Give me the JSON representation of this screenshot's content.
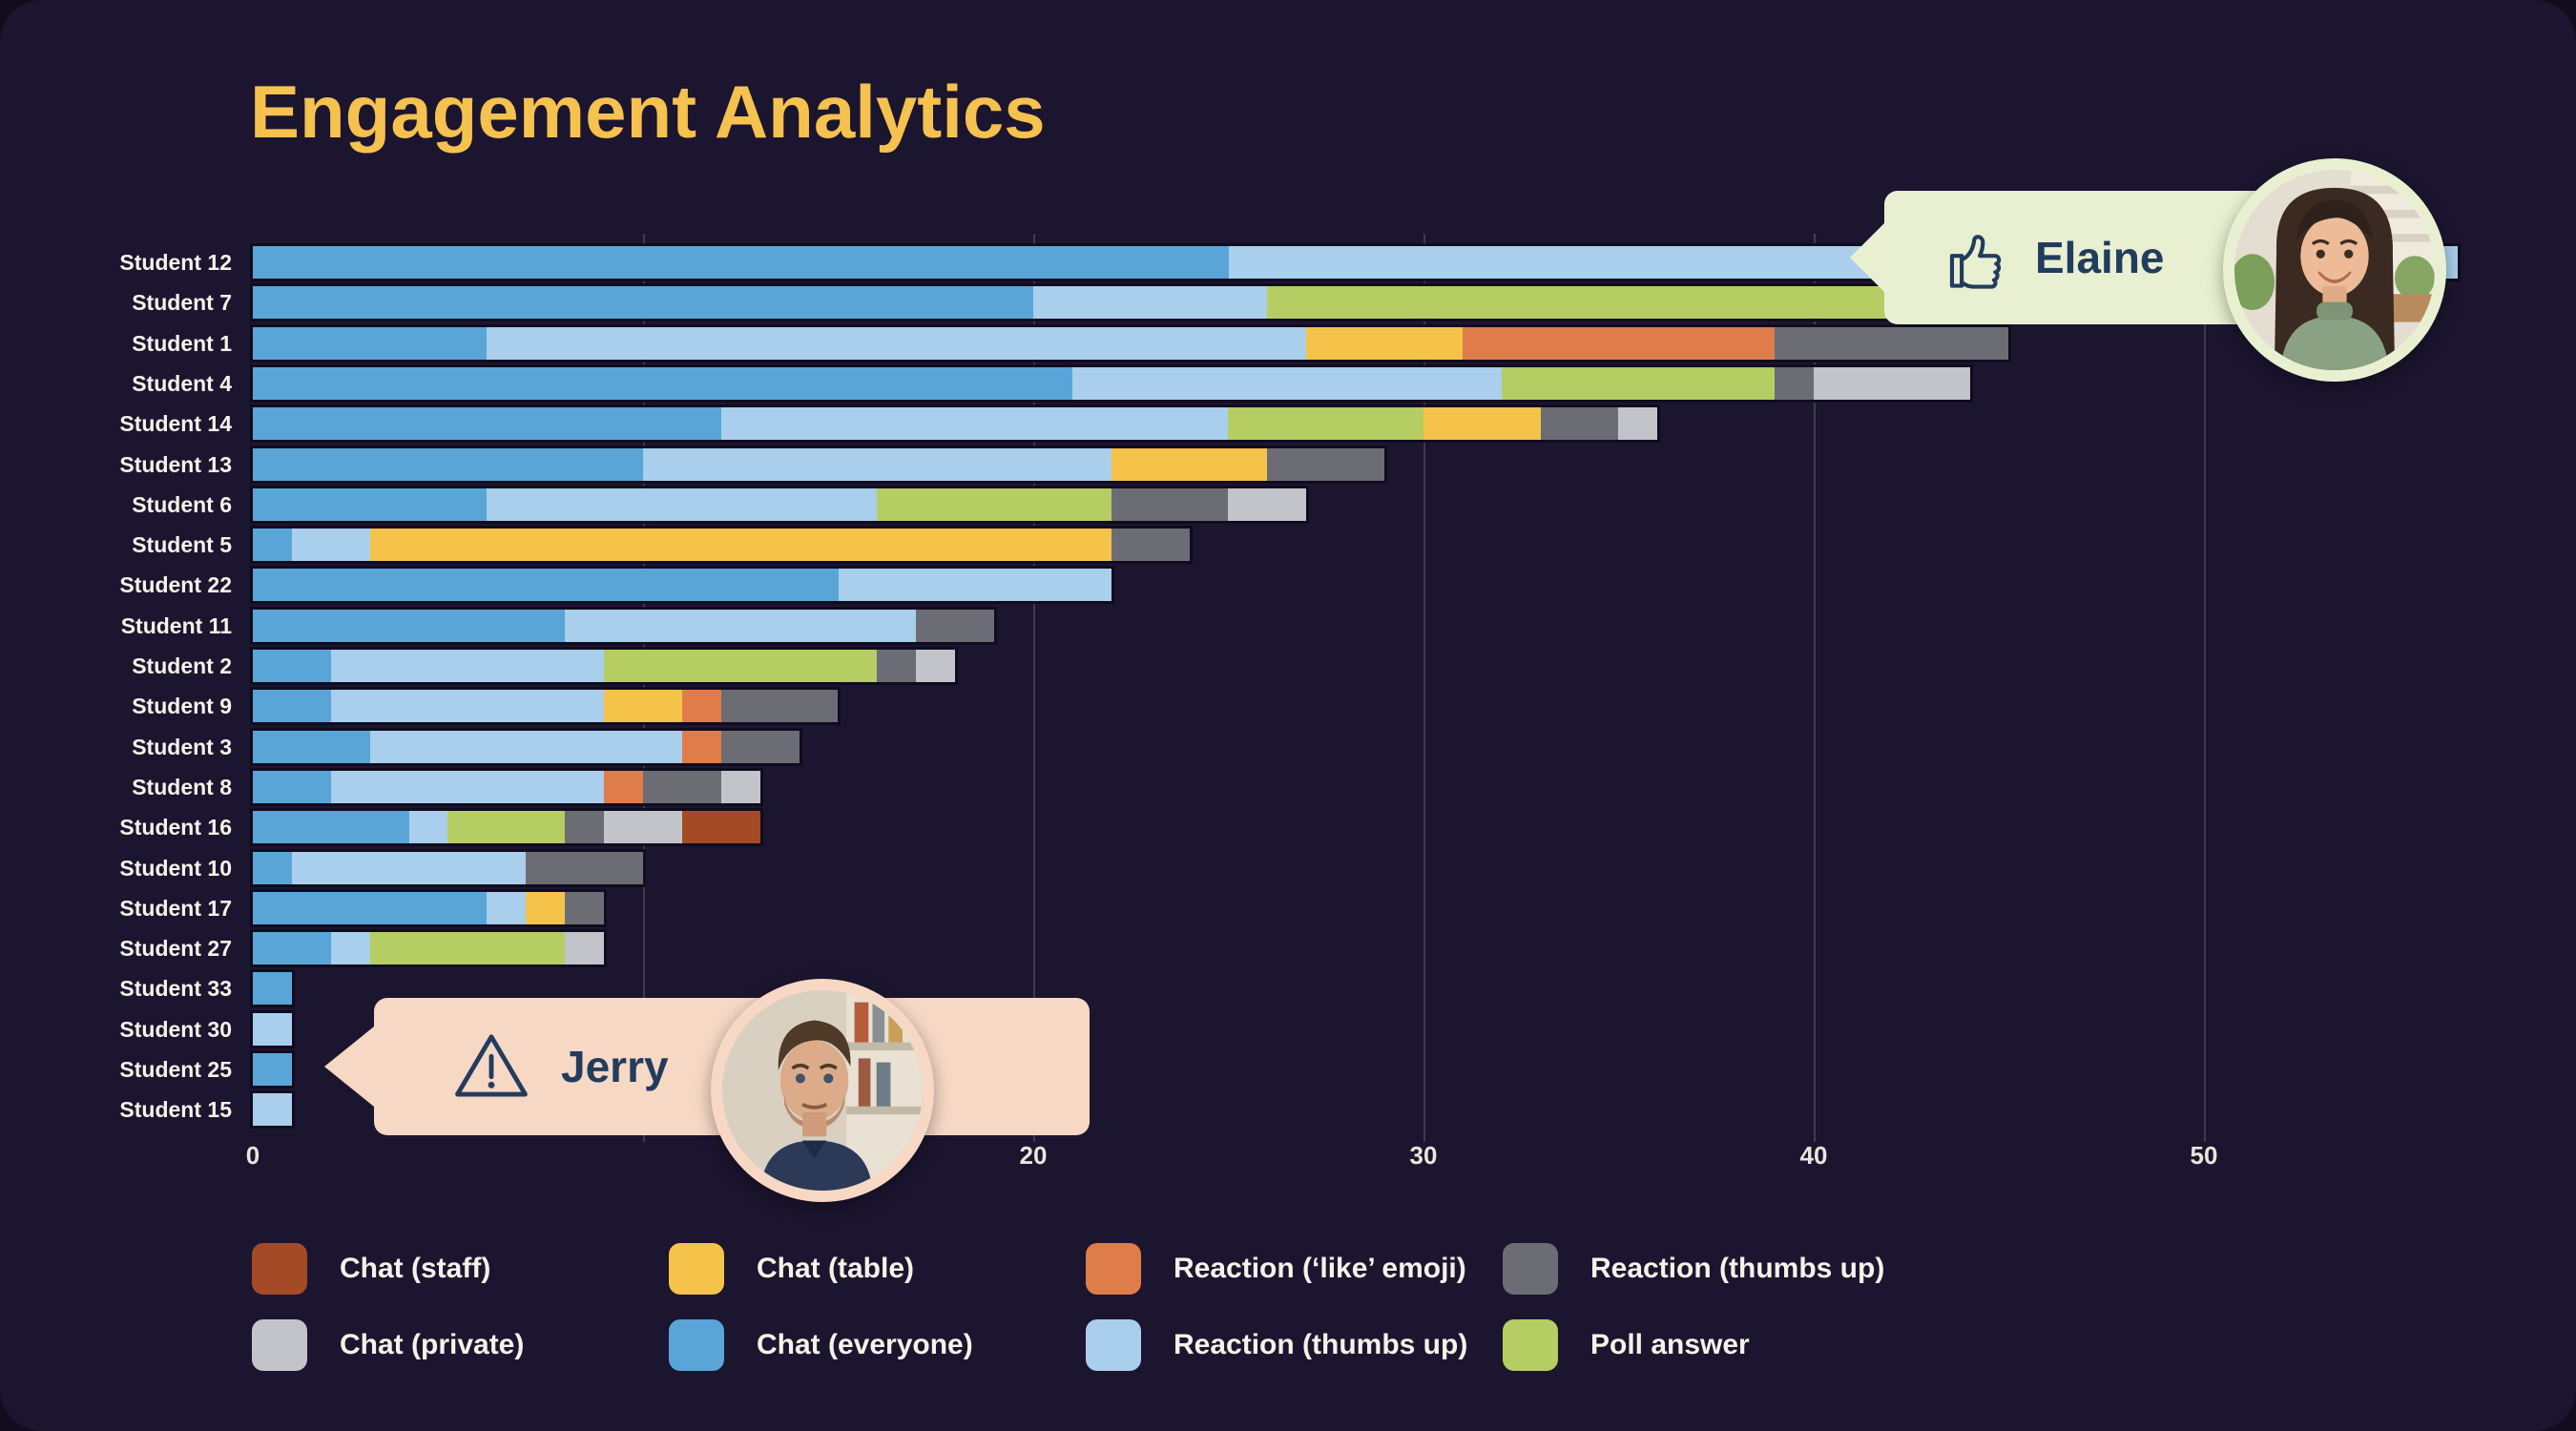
{
  "title": "Engagement Analytics",
  "colors": {
    "background": "#120c1e",
    "card": "#1c152f",
    "title": "#f5c14f",
    "text": "#f6f2e9",
    "grid": "rgba(255,255,255,0.16)",
    "callout_elaine_bg": "#e9f0d2",
    "callout_jerry_bg": "#f6d8c5",
    "callout_text": "#223c5e",
    "series": {
      "chat_staff": "#a54a26",
      "chat_table": "#f5c24a",
      "reaction_like": "#df7d4a",
      "reaction_thumbs_dark": "#6c6c74",
      "chat_private": "#c3c3ca",
      "chat_everyone": "#5aa5d8",
      "reaction_thumbs_light": "#a9cfec",
      "poll_answer": "#b5cd62"
    }
  },
  "chart_data": {
    "type": "bar",
    "orientation": "horizontal",
    "stacked": true,
    "title": "Engagement Analytics",
    "xlabel": "",
    "ylabel": "",
    "xlim": [
      0,
      57
    ],
    "x_axis": {
      "tick_labels": [
        0,
        20,
        30,
        40,
        50
      ],
      "gridlines": [
        10,
        20,
        30,
        40,
        50
      ]
    },
    "grid": true,
    "legend_position": "bottom",
    "legend": [
      {
        "key": "chat_staff",
        "label": "Chat (staff)"
      },
      {
        "key": "chat_table",
        "label": "Chat (table)"
      },
      {
        "key": "reaction_like",
        "label": "Reaction (‘like’ emoji)"
      },
      {
        "key": "reaction_thumbs_dark",
        "label": "Reaction (thumbs up)"
      },
      {
        "key": "chat_private",
        "label": "Chat (private)"
      },
      {
        "key": "chat_everyone",
        "label": "Chat (everyone)"
      },
      {
        "key": "reaction_thumbs_light",
        "label": "Reaction (thumbs up)"
      },
      {
        "key": "poll_answer",
        "label": "Poll answer"
      }
    ],
    "categories": [
      "Student 12",
      "Student 7",
      "Student 1",
      "Student 4",
      "Student 14",
      "Student 13",
      "Student 6",
      "Student 5",
      "Student 22",
      "Student 11",
      "Student 2",
      "Student 9",
      "Student 3",
      "Student 8",
      "Student 16",
      "Student 10",
      "Student 17",
      "Student 27",
      "Student 33",
      "Student 30",
      "Student 25",
      "Student 15"
    ],
    "rows": [
      {
        "label": "Student 12",
        "segments": [
          {
            "key": "chat_everyone",
            "value": 25
          },
          {
            "key": "reaction_thumbs_light",
            "value": 31.5
          }
        ]
      },
      {
        "label": "Student 7",
        "segments": [
          {
            "key": "chat_everyone",
            "value": 20
          },
          {
            "key": "reaction_thumbs_light",
            "value": 6
          },
          {
            "key": "poll_answer",
            "value": 18
          }
        ]
      },
      {
        "label": "Student 1",
        "segments": [
          {
            "key": "chat_everyone",
            "value": 6
          },
          {
            "key": "reaction_thumbs_light",
            "value": 21
          },
          {
            "key": "chat_table",
            "value": 4
          },
          {
            "key": "reaction_like",
            "value": 8
          },
          {
            "key": "reaction_thumbs_dark",
            "value": 6
          }
        ]
      },
      {
        "label": "Student 4",
        "segments": [
          {
            "key": "chat_everyone",
            "value": 21
          },
          {
            "key": "reaction_thumbs_light",
            "value": 11
          },
          {
            "key": "poll_answer",
            "value": 7
          },
          {
            "key": "reaction_thumbs_dark",
            "value": 1
          },
          {
            "key": "chat_private",
            "value": 4
          }
        ]
      },
      {
        "label": "Student 14",
        "segments": [
          {
            "key": "chat_everyone",
            "value": 12
          },
          {
            "key": "reaction_thumbs_light",
            "value": 13
          },
          {
            "key": "poll_answer",
            "value": 5
          },
          {
            "key": "chat_table",
            "value": 3
          },
          {
            "key": "reaction_thumbs_dark",
            "value": 2
          },
          {
            "key": "chat_private",
            "value": 1
          }
        ]
      },
      {
        "label": "Student 13",
        "segments": [
          {
            "key": "chat_everyone",
            "value": 10
          },
          {
            "key": "reaction_thumbs_light",
            "value": 12
          },
          {
            "key": "chat_table",
            "value": 4
          },
          {
            "key": "reaction_thumbs_dark",
            "value": 3
          }
        ]
      },
      {
        "label": "Student 6",
        "segments": [
          {
            "key": "chat_everyone",
            "value": 6
          },
          {
            "key": "reaction_thumbs_light",
            "value": 10
          },
          {
            "key": "poll_answer",
            "value": 6
          },
          {
            "key": "reaction_thumbs_dark",
            "value": 3
          },
          {
            "key": "chat_private",
            "value": 2
          }
        ]
      },
      {
        "label": "Student 5",
        "segments": [
          {
            "key": "chat_everyone",
            "value": 1
          },
          {
            "key": "reaction_thumbs_light",
            "value": 2
          },
          {
            "key": "chat_table",
            "value": 19
          },
          {
            "key": "reaction_thumbs_dark",
            "value": 2
          }
        ]
      },
      {
        "label": "Student 22",
        "segments": [
          {
            "key": "chat_everyone",
            "value": 15
          },
          {
            "key": "reaction_thumbs_light",
            "value": 7
          }
        ]
      },
      {
        "label": "Student 11",
        "segments": [
          {
            "key": "chat_everyone",
            "value": 8
          },
          {
            "key": "reaction_thumbs_light",
            "value": 9
          },
          {
            "key": "reaction_thumbs_dark",
            "value": 2
          }
        ]
      },
      {
        "label": "Student 2",
        "segments": [
          {
            "key": "chat_everyone",
            "value": 2
          },
          {
            "key": "reaction_thumbs_light",
            "value": 7
          },
          {
            "key": "poll_answer",
            "value": 7
          },
          {
            "key": "reaction_thumbs_dark",
            "value": 1
          },
          {
            "key": "chat_private",
            "value": 1
          }
        ]
      },
      {
        "label": "Student 9",
        "segments": [
          {
            "key": "chat_everyone",
            "value": 2
          },
          {
            "key": "reaction_thumbs_light",
            "value": 7
          },
          {
            "key": "chat_table",
            "value": 2
          },
          {
            "key": "reaction_like",
            "value": 1
          },
          {
            "key": "reaction_thumbs_dark",
            "value": 3
          }
        ]
      },
      {
        "label": "Student 3",
        "segments": [
          {
            "key": "chat_everyone",
            "value": 3
          },
          {
            "key": "reaction_thumbs_light",
            "value": 8
          },
          {
            "key": "reaction_like",
            "value": 1
          },
          {
            "key": "reaction_thumbs_dark",
            "value": 2
          }
        ]
      },
      {
        "label": "Student 8",
        "segments": [
          {
            "key": "chat_everyone",
            "value": 2
          },
          {
            "key": "reaction_thumbs_light",
            "value": 7
          },
          {
            "key": "reaction_like",
            "value": 1
          },
          {
            "key": "reaction_thumbs_dark",
            "value": 2
          },
          {
            "key": "chat_private",
            "value": 1
          }
        ]
      },
      {
        "label": "Student 16",
        "segments": [
          {
            "key": "chat_everyone",
            "value": 4
          },
          {
            "key": "reaction_thumbs_light",
            "value": 1
          },
          {
            "key": "poll_answer",
            "value": 3
          },
          {
            "key": "reaction_thumbs_dark",
            "value": 1
          },
          {
            "key": "chat_private",
            "value": 2
          },
          {
            "key": "chat_staff",
            "value": 2
          }
        ]
      },
      {
        "label": "Student 10",
        "segments": [
          {
            "key": "chat_everyone",
            "value": 1
          },
          {
            "key": "reaction_thumbs_light",
            "value": 6
          },
          {
            "key": "reaction_thumbs_dark",
            "value": 3
          }
        ]
      },
      {
        "label": "Student 17",
        "segments": [
          {
            "key": "chat_everyone",
            "value": 6
          },
          {
            "key": "reaction_thumbs_light",
            "value": 1
          },
          {
            "key": "chat_table",
            "value": 1
          },
          {
            "key": "reaction_thumbs_dark",
            "value": 1
          }
        ]
      },
      {
        "label": "Student 27",
        "segments": [
          {
            "key": "chat_everyone",
            "value": 2
          },
          {
            "key": "reaction_thumbs_light",
            "value": 1
          },
          {
            "key": "poll_answer",
            "value": 5
          },
          {
            "key": "chat_private",
            "value": 1
          }
        ]
      },
      {
        "label": "Student 33",
        "segments": [
          {
            "key": "chat_everyone",
            "value": 1
          }
        ]
      },
      {
        "label": "Student 30",
        "segments": [
          {
            "key": "reaction_thumbs_light",
            "value": 1
          }
        ]
      },
      {
        "label": "Student 25",
        "segments": [
          {
            "key": "chat_everyone",
            "value": 1
          }
        ]
      },
      {
        "label": "Student 15",
        "segments": [
          {
            "key": "reaction_thumbs_light",
            "value": 1
          }
        ]
      }
    ]
  },
  "callouts": [
    {
      "name": "Elaine",
      "icon": "thumbs-up-icon",
      "points_at": "Student 12"
    },
    {
      "name": "Jerry",
      "icon": "warning-icon",
      "points_at": "Student 25"
    }
  ]
}
